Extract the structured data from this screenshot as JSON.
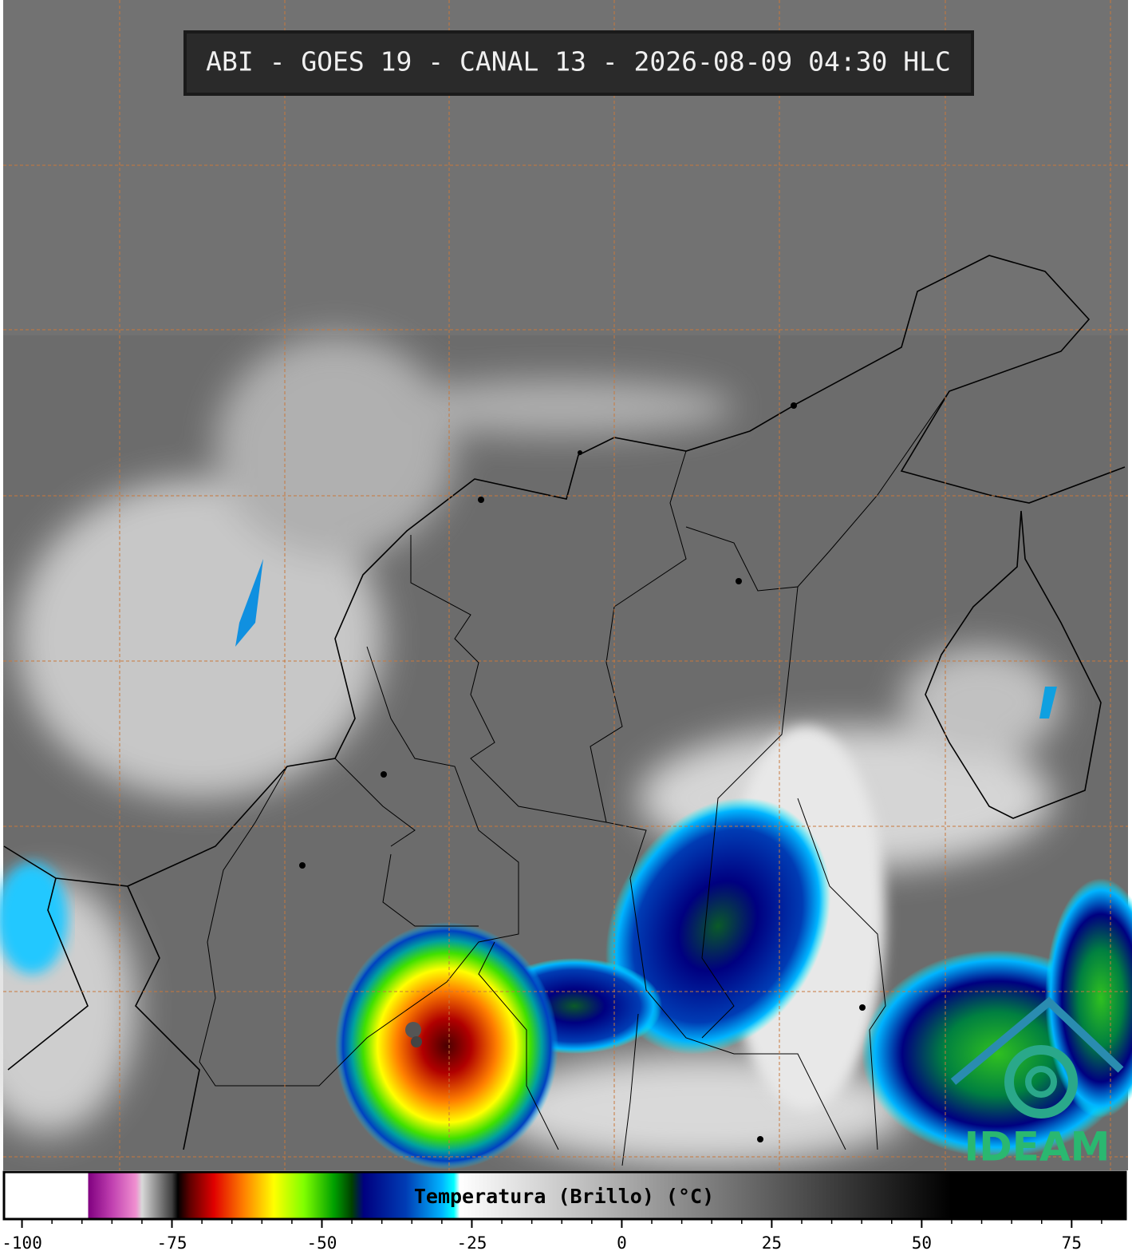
{
  "title": "ABI - GOES 19 - CANAL 13 - 2026-08-09 04:30 HLC",
  "logo": "IDEAM",
  "colorbar": {
    "label": "Temperatura (Brillo) (°C)",
    "xlim": [
      -103,
      84
    ],
    "xticks": [
      -100,
      -75,
      -50,
      -25,
      0,
      25,
      50,
      75
    ],
    "xminorticks": [
      -95,
      -90,
      -85,
      -80,
      -70,
      -65,
      -60,
      -55,
      -45,
      -40,
      -35,
      -30,
      -20,
      -15,
      -10,
      -5,
      5,
      10,
      15,
      20,
      30,
      35,
      40,
      45,
      55,
      60,
      65,
      70,
      80
    ],
    "colormap": [
      {
        "value": -103,
        "color": "#ffffff"
      },
      {
        "value": -89,
        "color": "#ffffff"
      },
      {
        "value": -89,
        "color": "#800080"
      },
      {
        "value": -85,
        "color": "#c040b0"
      },
      {
        "value": -81,
        "color": "#f090d0"
      },
      {
        "value": -80,
        "color": "#d8d8d8"
      },
      {
        "value": -75,
        "color": "#404040"
      },
      {
        "value": -74,
        "color": "#000000"
      },
      {
        "value": -72,
        "color": "#600000"
      },
      {
        "value": -68,
        "color": "#e00000"
      },
      {
        "value": -63,
        "color": "#ff8000"
      },
      {
        "value": -58,
        "color": "#ffff00"
      },
      {
        "value": -53,
        "color": "#80ff00"
      },
      {
        "value": -48,
        "color": "#00a000"
      },
      {
        "value": -45,
        "color": "#004000"
      },
      {
        "value": -43,
        "color": "#000080"
      },
      {
        "value": -36,
        "color": "#003cb4"
      },
      {
        "value": -30,
        "color": "#00b4ff"
      },
      {
        "value": -28,
        "color": "#00ffff"
      },
      {
        "value": -27,
        "color": "#ffffff"
      },
      {
        "value": 55,
        "color": "#000000"
      },
      {
        "value": 84,
        "color": "#000000"
      }
    ]
  }
}
